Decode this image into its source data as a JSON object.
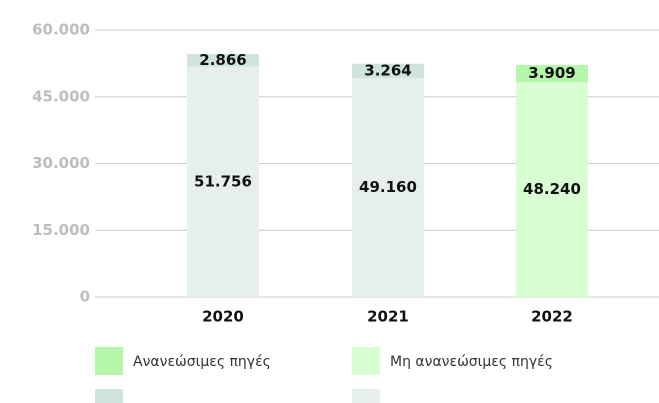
{
  "chart_data": {
    "type": "stacked_bar",
    "categories": [
      "2020",
      "2021",
      "2022"
    ],
    "series": [
      {
        "name": "Μη ανανεώσιμες πηγές",
        "colors": [
          "#e6efed",
          "#e6efed",
          "#d9fdd3"
        ],
        "values": [
          51756,
          49160,
          48240
        ],
        "value_labels": [
          "51.756",
          "49.160",
          "48.240"
        ]
      },
      {
        "name": "Ανανεώσιμες πηγές",
        "colors": [
          "#cfe3df",
          "#cfe3df",
          "#b5f7a8"
        ],
        "values": [
          2866,
          3264,
          3909
        ],
        "value_labels": [
          "2.866",
          "3.264",
          "3.909"
        ]
      }
    ],
    "ylim": [
      0,
      60000
    ],
    "yticks": [
      0,
      {
        "value": 15000,
        "label": "15.000"
      },
      {
        "value": 30000,
        "label": "30.000"
      },
      {
        "value": 45000,
        "label": "45.000"
      },
      {
        "value": 60000,
        "label": "60.000"
      }
    ],
    "grid": true
  }
}
